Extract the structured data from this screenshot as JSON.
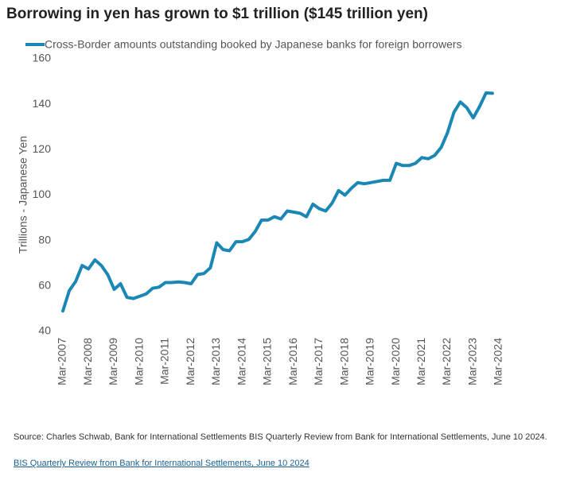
{
  "chart_data": {
    "type": "line",
    "title": "Borrowing in yen has grown to $1 trillion ($145 trillion yen)",
    "y_label": "Trillions - Japanese Yen",
    "categories": [
      "Mar-2007",
      null,
      null,
      null,
      "Mar-2008",
      null,
      null,
      null,
      "Mar-2009",
      null,
      null,
      null,
      "Mar-2010",
      null,
      null,
      null,
      "Mar-2011",
      null,
      null,
      null,
      "Mar-2012",
      null,
      null,
      null,
      "Mar-2013",
      null,
      null,
      null,
      "Mar-2014",
      null,
      null,
      null,
      "Mar-2015",
      null,
      null,
      null,
      "Mar-2016",
      null,
      null,
      null,
      "Mar-2017",
      null,
      null,
      null,
      "Mar-2018",
      null,
      null,
      null,
      "Mar-2019",
      null,
      null,
      null,
      "Mar-2020",
      null,
      null,
      null,
      "Mar-2021",
      null,
      null,
      null,
      "Mar-2022",
      null,
      null,
      null,
      "Mar-2023",
      null,
      null,
      null,
      "Mar-2024"
    ],
    "series": [
      {
        "name": "Cross-Border amounts outstanding booked by Japanese banks for foreign borrowers",
        "color": "#1b87b5",
        "values": [
          49,
          58,
          62,
          69,
          67.5,
          71.5,
          69,
          65,
          58.5,
          61,
          55,
          54.5,
          55.5,
          56.5,
          59,
          59.5,
          61.5,
          61.5,
          61.8,
          61.5,
          61,
          65,
          65.5,
          68,
          79,
          76,
          75.5,
          79.5,
          79.5,
          80.5,
          84,
          89,
          89,
          90.5,
          89.5,
          93,
          92.5,
          92,
          90.5,
          96,
          94,
          93,
          96.5,
          102,
          100,
          103,
          105.5,
          105,
          105.5,
          106,
          106.5,
          106.5,
          114,
          113,
          113,
          114,
          116.5,
          116,
          117.5,
          121,
          127.5,
          136.5,
          141,
          138.5,
          134,
          139,
          145,
          144.8,
          null
        ]
      }
    ],
    "ylim": [
      40,
      160
    ],
    "yticks": [
      40,
      60,
      80,
      100,
      120,
      140,
      160
    ],
    "grid": false
  },
  "source": "Source: Charles Schwab, Bank for International Settlements BIS Quarterly Review from Bank for International Settlements, June 10 2024.",
  "link": "BIS Quarterly Review from Bank for International Settlements, June 10 2024"
}
